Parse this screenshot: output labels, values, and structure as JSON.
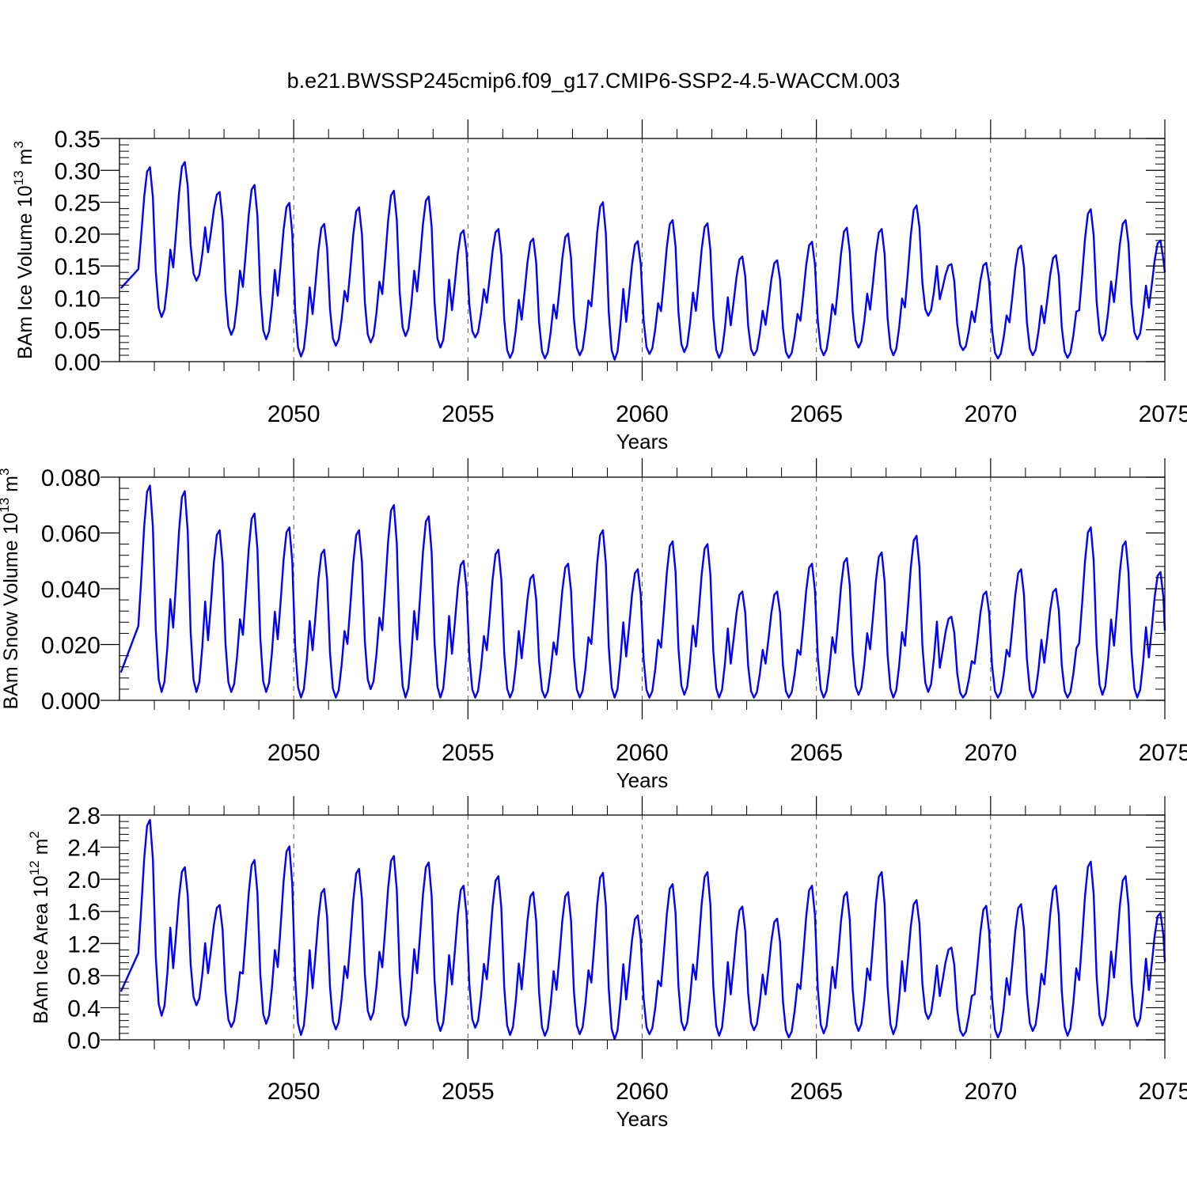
{
  "chart_data": {
    "title": "b.e21.BWSSP245cmip6.f09_g17.CMIP6-SSP2-4.5-WACCM.003",
    "panels": [
      {
        "type": "line",
        "ylabel": {
          "text": "BAm Ice Volume 10",
          "exp": "13",
          "unit": " m",
          "unit_exp": "3"
        },
        "xlabel": "Years",
        "xlim": [
          2045.0,
          2075.0
        ],
        "ylim": [
          0,
          0.35
        ],
        "yticks": [
          0.0,
          0.05,
          0.1,
          0.15,
          0.2,
          0.25,
          0.3,
          0.35
        ],
        "ytick_labels": [
          "0.00",
          "0.05",
          "0.10",
          "0.15",
          "0.20",
          "0.25",
          "0.30",
          "0.35"
        ],
        "xticks": [
          2050,
          2055,
          2060,
          2065,
          2070,
          2075
        ],
        "xtick_labels": [
          "2050",
          "2055",
          "2060",
          "2065",
          "2070",
          "2075"
        ],
        "series": [
          {
            "name": "ice_volume",
            "color": "#0000ff",
            "annual": [
              {
                "max": 0.305,
                "min": 0.07
              },
              {
                "max": 0.313,
                "min": 0.127
              },
              {
                "max": 0.266,
                "min": 0.042
              },
              {
                "max": 0.277,
                "min": 0.035
              },
              {
                "max": 0.249,
                "min": 0.008
              },
              {
                "max": 0.216,
                "min": 0.025
              },
              {
                "max": 0.242,
                "min": 0.03
              },
              {
                "max": 0.268,
                "min": 0.04
              },
              {
                "max": 0.259,
                "min": 0.022
              },
              {
                "max": 0.206,
                "min": 0.038
              },
              {
                "max": 0.208,
                "min": 0.006
              },
              {
                "max": 0.193,
                "min": 0.005
              },
              {
                "max": 0.201,
                "min": 0.01
              },
              {
                "max": 0.25,
                "min": 0.003
              },
              {
                "max": 0.189,
                "min": 0.012
              },
              {
                "max": 0.222,
                "min": 0.015
              },
              {
                "max": 0.217,
                "min": 0.006
              },
              {
                "max": 0.165,
                "min": 0.01
              },
              {
                "max": 0.159,
                "min": 0.006
              },
              {
                "max": 0.188,
                "min": 0.01
              },
              {
                "max": 0.21,
                "min": 0.022
              },
              {
                "max": 0.208,
                "min": 0.01
              },
              {
                "max": 0.245,
                "min": 0.072
              },
              {
                "max": 0.153,
                "min": 0.018
              },
              {
                "max": 0.155,
                "min": 0.005
              },
              {
                "max": 0.182,
                "min": 0.01
              },
              {
                "max": 0.167,
                "min": 0.006
              },
              {
                "max": 0.239,
                "min": 0.033
              },
              {
                "max": 0.222,
                "min": 0.035
              },
              {
                "max": 0.19,
                "min": 0.04
              }
            ],
            "start": 0.115,
            "end": 0.14
          }
        ]
      },
      {
        "type": "line",
        "ylabel": {
          "text": "BAm Snow Volume 10",
          "exp": "13",
          "unit": " m",
          "unit_exp": "3"
        },
        "xlabel": "Years",
        "xlim": [
          2045.0,
          2075.0
        ],
        "ylim": [
          0,
          0.08
        ],
        "yticks": [
          0.0,
          0.02,
          0.04,
          0.06,
          0.08
        ],
        "ytick_labels": [
          "0.000",
          "0.020",
          "0.040",
          "0.060",
          "0.080"
        ],
        "xticks": [
          2050,
          2055,
          2060,
          2065,
          2070,
          2075
        ],
        "xtick_labels": [
          "2050",
          "2055",
          "2060",
          "2065",
          "2070",
          "2075"
        ],
        "series": [
          {
            "name": "snow_volume",
            "color": "#0000ff",
            "annual": [
              {
                "max": 0.077,
                "min": 0.003
              },
              {
                "max": 0.075,
                "min": 0.003
              },
              {
                "max": 0.061,
                "min": 0.003
              },
              {
                "max": 0.067,
                "min": 0.003
              },
              {
                "max": 0.062,
                "min": 0.001
              },
              {
                "max": 0.054,
                "min": 0.001
              },
              {
                "max": 0.061,
                "min": 0.004
              },
              {
                "max": 0.07,
                "min": 0.001
              },
              {
                "max": 0.066,
                "min": 0.001
              },
              {
                "max": 0.05,
                "min": 0.001
              },
              {
                "max": 0.054,
                "min": 0.001
              },
              {
                "max": 0.045,
                "min": 0.001
              },
              {
                "max": 0.049,
                "min": 0.001
              },
              {
                "max": 0.061,
                "min": 0.001
              },
              {
                "max": 0.047,
                "min": 0.001
              },
              {
                "max": 0.057,
                "min": 0.002
              },
              {
                "max": 0.056,
                "min": 0.001
              },
              {
                "max": 0.039,
                "min": 0.001
              },
              {
                "max": 0.039,
                "min": 0.001
              },
              {
                "max": 0.049,
                "min": 0.001
              },
              {
                "max": 0.051,
                "min": 0.002
              },
              {
                "max": 0.053,
                "min": 0.001
              },
              {
                "max": 0.059,
                "min": 0.003
              },
              {
                "max": 0.03,
                "min": 0.001
              },
              {
                "max": 0.039,
                "min": 0.001
              },
              {
                "max": 0.047,
                "min": 0.001
              },
              {
                "max": 0.04,
                "min": 0.001
              },
              {
                "max": 0.062,
                "min": 0.002
              },
              {
                "max": 0.057,
                "min": 0.001
              },
              {
                "max": 0.046,
                "min": 0.001
              }
            ],
            "start": 0.01,
            "end": 0.025
          }
        ]
      },
      {
        "type": "line",
        "ylabel": {
          "text": "BAm Ice Area 10",
          "exp": "12",
          "unit": " m",
          "unit_exp": "2"
        },
        "xlabel": "Years",
        "xlim": [
          2045.0,
          2075.0
        ],
        "ylim": [
          0,
          2.8
        ],
        "yticks": [
          0.0,
          0.4,
          0.8,
          1.2,
          1.6,
          2.0,
          2.4,
          2.8
        ],
        "ytick_labels": [
          "0.0",
          "0.4",
          "0.8",
          "1.2",
          "1.6",
          "2.0",
          "2.4",
          "2.8"
        ],
        "xticks": [
          2050,
          2055,
          2060,
          2065,
          2070,
          2075
        ],
        "xtick_labels": [
          "2050",
          "2055",
          "2060",
          "2065",
          "2070",
          "2075"
        ],
        "series": [
          {
            "name": "ice_area",
            "color": "#0000ff",
            "annual": [
              {
                "max": 2.74,
                "min": 0.3
              },
              {
                "max": 2.15,
                "min": 0.43
              },
              {
                "max": 1.68,
                "min": 0.16
              },
              {
                "max": 2.24,
                "min": 0.2
              },
              {
                "max": 2.41,
                "min": 0.06
              },
              {
                "max": 1.88,
                "min": 0.13
              },
              {
                "max": 2.13,
                "min": 0.25
              },
              {
                "max": 2.29,
                "min": 0.18
              },
              {
                "max": 2.21,
                "min": 0.11
              },
              {
                "max": 1.92,
                "min": 0.15
              },
              {
                "max": 2.04,
                "min": 0.06
              },
              {
                "max": 1.84,
                "min": 0.05
              },
              {
                "max": 1.84,
                "min": 0.07
              },
              {
                "max": 2.08,
                "min": 0.01
              },
              {
                "max": 1.55,
                "min": 0.07
              },
              {
                "max": 1.94,
                "min": 0.12
              },
              {
                "max": 2.09,
                "min": 0.05
              },
              {
                "max": 1.66,
                "min": 0.12
              },
              {
                "max": 1.51,
                "min": 0.03
              },
              {
                "max": 1.92,
                "min": 0.08
              },
              {
                "max": 1.84,
                "min": 0.11
              },
              {
                "max": 2.09,
                "min": 0.07
              },
              {
                "max": 1.74,
                "min": 0.26
              },
              {
                "max": 1.15,
                "min": 0.05
              },
              {
                "max": 1.67,
                "min": 0.03
              },
              {
                "max": 1.69,
                "min": 0.11
              },
              {
                "max": 1.92,
                "min": 0.05
              },
              {
                "max": 2.22,
                "min": 0.18
              },
              {
                "max": 2.04,
                "min": 0.17
              },
              {
                "max": 1.58,
                "min": 0.2
              }
            ],
            "start": 0.6,
            "end": 0.97
          }
        ]
      }
    ]
  }
}
